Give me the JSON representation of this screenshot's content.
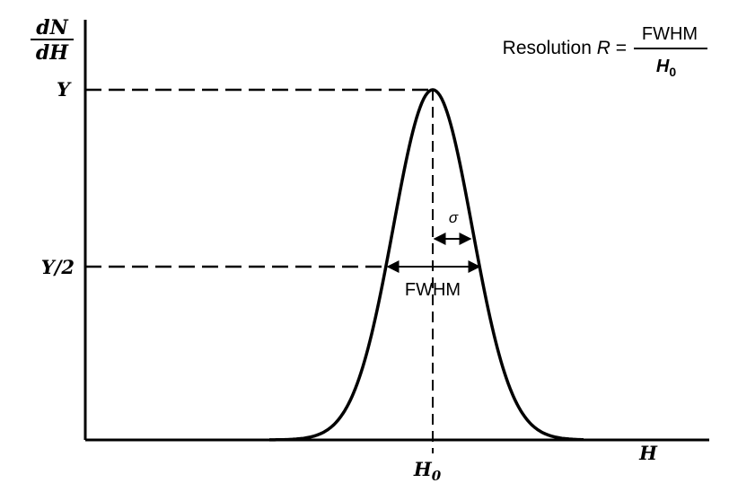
{
  "axes": {
    "y_label_num": "dN",
    "y_label_den": "dH",
    "x_label": "H",
    "y_tick_top": "Y",
    "y_tick_half": "Y/2",
    "x_tick_center": "H",
    "x_tick_center_sub": "0"
  },
  "annotations": {
    "sigma": "σ",
    "fwhm": "FWHM"
  },
  "formula": {
    "prefix": "Resolution ",
    "variable": "R",
    "equals": " =",
    "numerator": "FWHM",
    "denominator": "H",
    "denominator_sub": "0"
  },
  "colors": {
    "stroke": "#000000",
    "background": "#ffffff"
  }
}
